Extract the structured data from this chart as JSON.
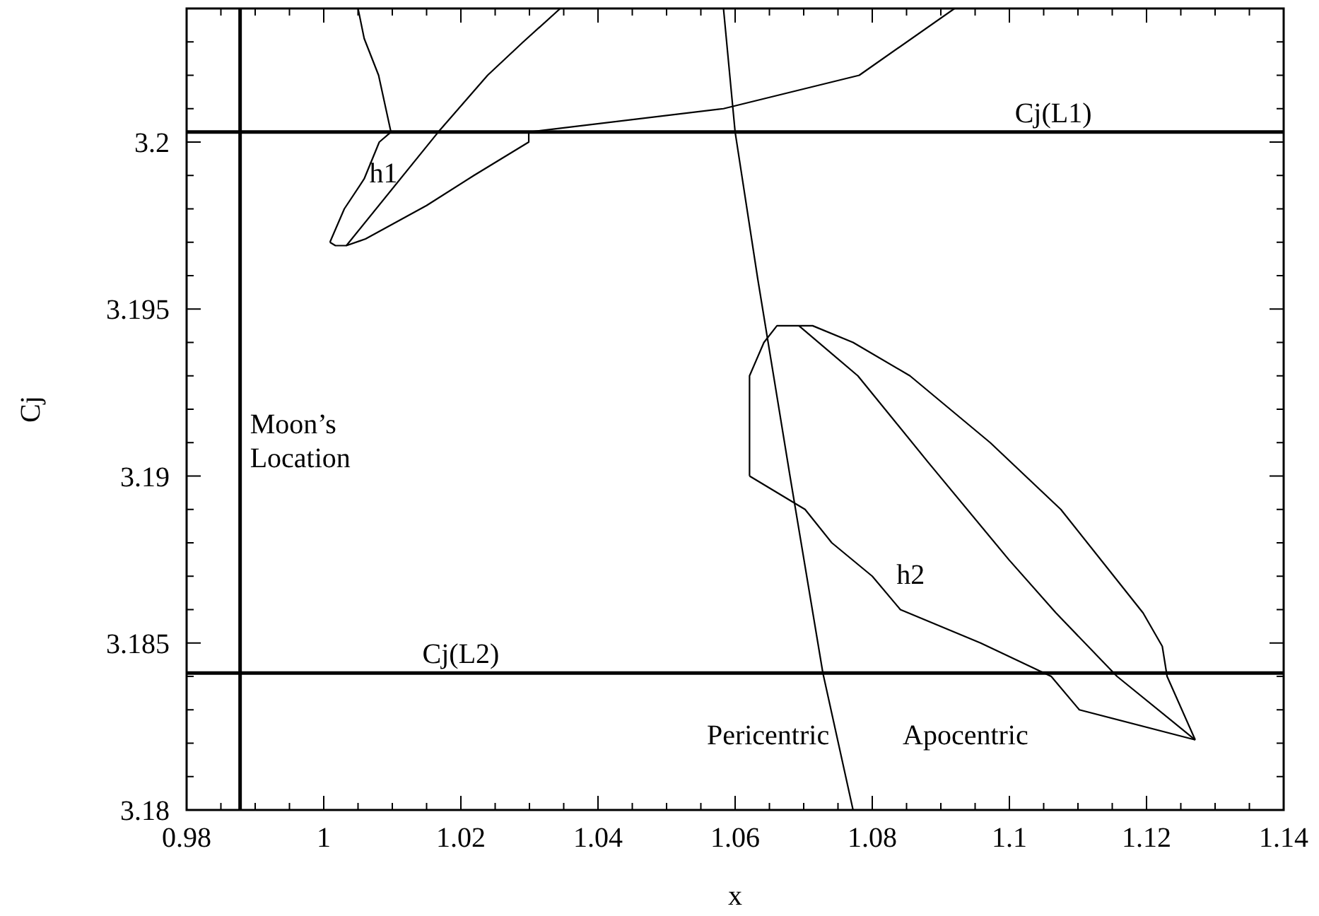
{
  "chart_data": {
    "type": "line",
    "xlabel": "x",
    "ylabel": "Cj",
    "xlim": [
      0.98,
      1.14
    ],
    "ylim": [
      3.18,
      3.204
    ],
    "xticks": [
      0.98,
      {
        "value": 0.985,
        "label": null
      },
      {
        "value": 0.99,
        "label": null
      },
      {
        "value": 0.995,
        "label": null
      },
      1,
      {
        "value": 1.005,
        "label": null
      },
      {
        "value": 1.01,
        "label": null
      },
      {
        "value": 1.015,
        "label": null
      },
      1.02,
      {
        "value": 1.025,
        "label": null
      },
      {
        "value": 1.03,
        "label": null
      },
      {
        "value": 1.035,
        "label": null
      },
      1.04,
      {
        "value": 1.045,
        "label": null
      },
      {
        "value": 1.05,
        "label": null
      },
      {
        "value": 1.055,
        "label": null
      },
      1.06,
      {
        "value": 1.065,
        "label": null
      },
      {
        "value": 1.07,
        "label": null
      },
      {
        "value": 1.075,
        "label": null
      },
      1.08,
      {
        "value": 1.085,
        "label": null
      },
      {
        "value": 1.09,
        "label": null
      },
      {
        "value": 1.095,
        "label": null
      },
      1.1,
      {
        "value": 1.105,
        "label": null
      },
      {
        "value": 1.11,
        "label": null
      },
      {
        "value": 1.115,
        "label": null
      },
      1.12,
      {
        "value": 1.125,
        "label": null
      },
      {
        "value": 1.13,
        "label": null
      },
      {
        "value": 1.135,
        "label": null
      },
      1.14
    ],
    "yticks": [
      3.18,
      {
        "value": 3.181,
        "label": null
      },
      {
        "value": 3.182,
        "label": null
      },
      {
        "value": 3.183,
        "label": null
      },
      {
        "value": 3.184,
        "label": null
      },
      3.185,
      {
        "value": 3.186,
        "label": null
      },
      {
        "value": 3.187,
        "label": null
      },
      {
        "value": 3.188,
        "label": null
      },
      {
        "value": 3.189,
        "label": null
      },
      3.19,
      {
        "value": 3.191,
        "label": null
      },
      {
        "value": 3.192,
        "label": null
      },
      {
        "value": 3.193,
        "label": null
      },
      {
        "value": 3.194,
        "label": null
      },
      3.195,
      {
        "value": 3.196,
        "label": null
      },
      {
        "value": 3.197,
        "label": null
      },
      {
        "value": 3.198,
        "label": null
      },
      {
        "value": 3.199,
        "label": null
      },
      3.2,
      {
        "value": 3.201,
        "label": null
      },
      {
        "value": 3.202,
        "label": null
      },
      {
        "value": 3.203,
        "label": null
      },
      {
        "value": 3.204,
        "label": null
      }
    ],
    "marker": "none",
    "line_style": "solid",
    "series": [
      {
        "color": "#000000",
        "x": [
          1.005,
          1.0059,
          1.008,
          1.0098
        ],
        "values": [
          3.204,
          3.2031,
          3.202,
          3.2003
        ]
      },
      {
        "color": "#000000",
        "x": [
          1.0009,
          1.003,
          1.0059,
          1.0081,
          1.0098
        ],
        "values": [
          3.197,
          3.198,
          3.1989,
          3.2,
          3.2003
        ]
      },
      {
        "color": "#000000",
        "x": [
          1.0009,
          1.0017,
          1.0033,
          1.0061,
          1.015,
          1.0219,
          1.0299,
          1.0299,
          1.0583,
          1.0781,
          1.092
        ],
        "values": [
          3.197,
          3.1969,
          3.1969,
          3.1971,
          3.1981,
          3.199,
          3.2,
          3.2003,
          3.201,
          3.202,
          3.204
        ]
      },
      {
        "color": "#000000",
        "x": [
          1.0033,
          1.0167,
          1.0239,
          1.0291,
          1.0345
        ],
        "values": [
          3.1969,
          3.2003,
          3.202,
          3.203,
          3.204
        ]
      },
      {
        "color": "#000000",
        "x": [
          1.0583,
          1.06,
          1.0633,
          1.068,
          1.0728,
          1.0772
        ],
        "values": [
          3.204,
          3.2003,
          3.1959,
          3.19,
          3.1841,
          3.18
        ]
      },
      {
        "color": "#000000",
        "x": [
          1.0621,
          1.0702,
          1.0741,
          1.08,
          1.0841,
          1.0958,
          1.1061,
          1.1102,
          1.1271
        ],
        "values": [
          3.19,
          3.189,
          3.188,
          3.187,
          3.186,
          3.185,
          3.184,
          3.183,
          3.1821
        ]
      },
      {
        "color": "#000000",
        "x": [
          1.0621,
          1.0621,
          1.0642,
          1.0661,
          1.0713,
          1.0772,
          1.0855,
          1.0972,
          1.1075,
          1.1195,
          1.1223,
          1.123,
          1.1271
        ],
        "values": [
          3.19,
          3.193,
          3.194,
          3.1945,
          3.1945,
          3.194,
          3.193,
          3.191,
          3.189,
          3.1859,
          3.1849,
          3.184,
          3.1821
        ]
      },
      {
        "color": "#000000",
        "x": [
          1.0693,
          1.0779,
          1.0882,
          1.0999,
          1.1068,
          1.1157,
          1.1271
        ],
        "values": [
          3.1945,
          3.193,
          3.1904,
          3.1875,
          3.1859,
          3.184,
          3.1821
        ]
      }
    ],
    "ref_lines": [
      {
        "axis": "x",
        "value": 0.9878,
        "label": "Moon’s Location",
        "color": "#000000"
      },
      {
        "axis": "y",
        "value": 3.2003,
        "label": "Cj(L1)",
        "color": "#000000"
      },
      {
        "axis": "y",
        "value": 3.1841,
        "label": "Cj(L2)",
        "color": "#000000"
      }
    ],
    "annotations": [
      {
        "text": "h1",
        "x": 1.0087,
        "y": 3.1985
      },
      "h2",
      "Pericentric",
      "Apocentric"
    ]
  }
}
